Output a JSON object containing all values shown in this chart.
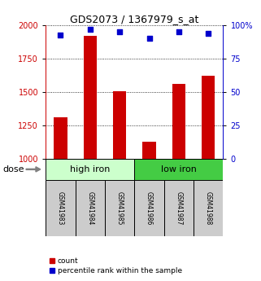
{
  "title": "GDS2073 / 1367979_s_at",
  "samples": [
    "GSM41983",
    "GSM41984",
    "GSM41985",
    "GSM41986",
    "GSM41987",
    "GSM41988"
  ],
  "bar_values": [
    1310,
    1920,
    1505,
    1130,
    1560,
    1620
  ],
  "dot_values": [
    93,
    97,
    95,
    90,
    95,
    94
  ],
  "ylim_left": [
    1000,
    2000
  ],
  "ylim_right": [
    0,
    100
  ],
  "yticks_left": [
    1000,
    1250,
    1500,
    1750,
    2000
  ],
  "yticks_right": [
    0,
    25,
    50,
    75,
    100
  ],
  "bar_color": "#cc0000",
  "dot_color": "#0000cc",
  "groups": [
    {
      "label": "high iron",
      "color": "#ccffcc"
    },
    {
      "label": "low iron",
      "color": "#44cc44"
    }
  ],
  "group_ranges": [
    [
      -0.5,
      2.5
    ],
    [
      2.5,
      5.5
    ]
  ],
  "dose_label": "dose",
  "legend_count": "count",
  "legend_percentile": "percentile rank within the sample",
  "sample_box_color": "#cccccc",
  "title_fontsize": 9,
  "tick_fontsize": 7,
  "sample_fontsize": 5.5,
  "group_fontsize": 8,
  "legend_fontsize": 6.5,
  "dose_fontsize": 8
}
